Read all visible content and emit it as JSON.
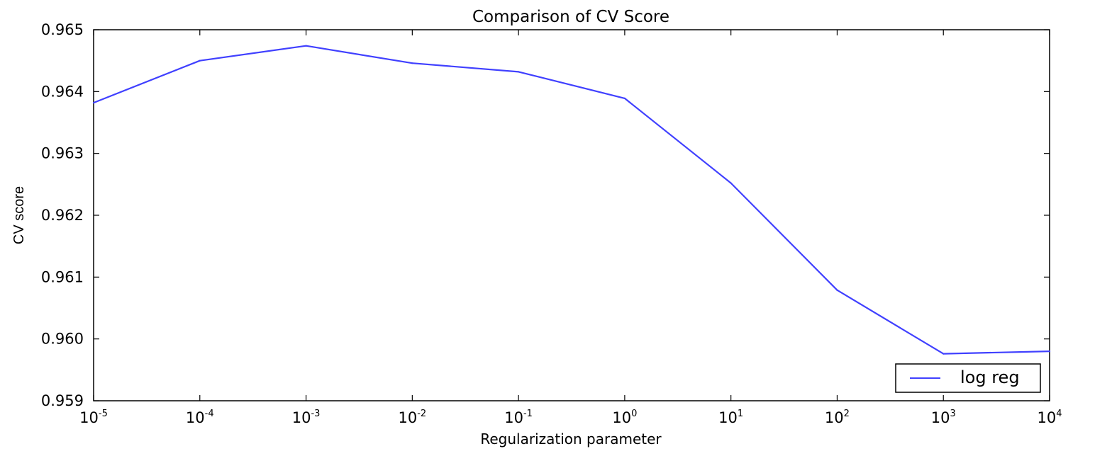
{
  "chart_data": {
    "type": "line",
    "title": "Comparison of CV Score",
    "xlabel": "Regularization parameter",
    "ylabel": "CV score",
    "x_scale": "log",
    "xlim": [
      1e-05,
      10000
    ],
    "ylim": [
      0.959,
      0.965
    ],
    "x_ticks": [
      {
        "base": "10",
        "exp": "-5"
      },
      {
        "base": "10",
        "exp": "-4"
      },
      {
        "base": "10",
        "exp": "-3"
      },
      {
        "base": "10",
        "exp": "-2"
      },
      {
        "base": "10",
        "exp": "-1"
      },
      {
        "base": "10",
        "exp": "0"
      },
      {
        "base": "10",
        "exp": "1"
      },
      {
        "base": "10",
        "exp": "2"
      },
      {
        "base": "10",
        "exp": "3"
      },
      {
        "base": "10",
        "exp": "4"
      }
    ],
    "y_ticks": [
      "0.959",
      "0.960",
      "0.961",
      "0.962",
      "0.963",
      "0.964",
      "0.965"
    ],
    "grid": false,
    "legend_position": "bottom-right",
    "series": [
      {
        "name": "log reg",
        "color": "#4040ff",
        "x": [
          1e-05,
          0.0001,
          0.001,
          0.01,
          0.1,
          1,
          10,
          100,
          1000,
          10000
        ],
        "y": [
          0.96382,
          0.9645,
          0.96474,
          0.96446,
          0.96432,
          0.96389,
          0.96252,
          0.96079,
          0.95976,
          0.9598
        ]
      }
    ]
  }
}
